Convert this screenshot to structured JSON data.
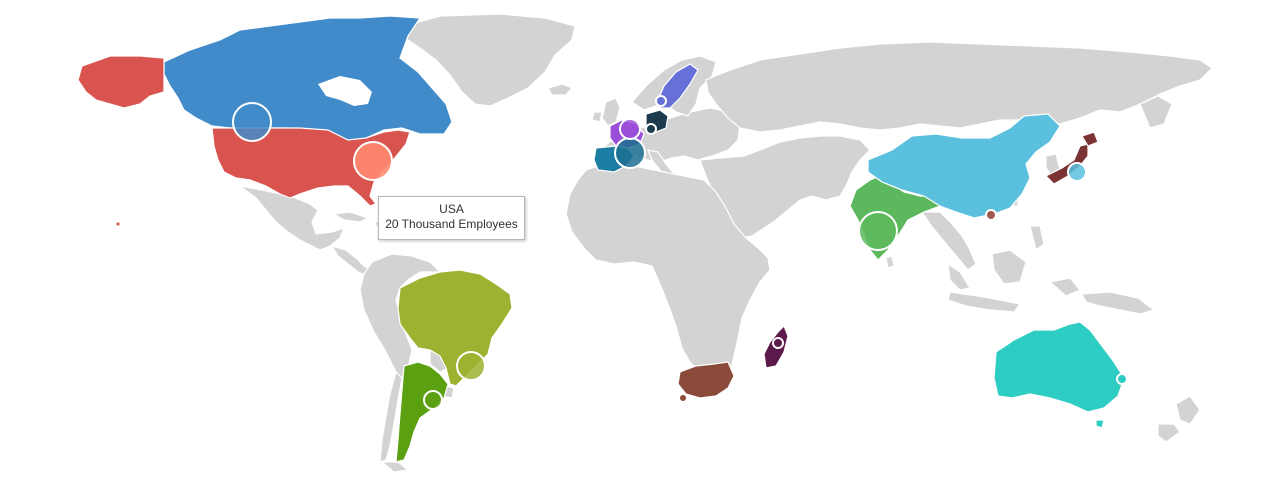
{
  "tooltip": {
    "country": "USA",
    "value_text": "20 Thousand Employees"
  },
  "colors": {
    "land": "#d3d3d3",
    "border": "#ffffff",
    "usa": "#d9534f",
    "canada": "#428bca",
    "brazil": "#9cb230",
    "argentina": "#5aa010",
    "spain": "#1c7ea3",
    "france": "#9b4fd8",
    "germany": "#1c3c4e",
    "sweden": "#6670d8",
    "india": "#5cb85c",
    "china": "#5bc0de",
    "japan": "#7a3232",
    "australia": "#2ecdc4",
    "south_africa": "#8a4a3a",
    "madagascar": "#5c1a4a"
  },
  "highlighted_countries": [
    "USA",
    "Canada",
    "Brazil",
    "Argentina",
    "Spain",
    "France",
    "Germany",
    "Sweden",
    "India",
    "China",
    "Japan",
    "Australia",
    "South Africa",
    "Madagascar"
  ]
}
